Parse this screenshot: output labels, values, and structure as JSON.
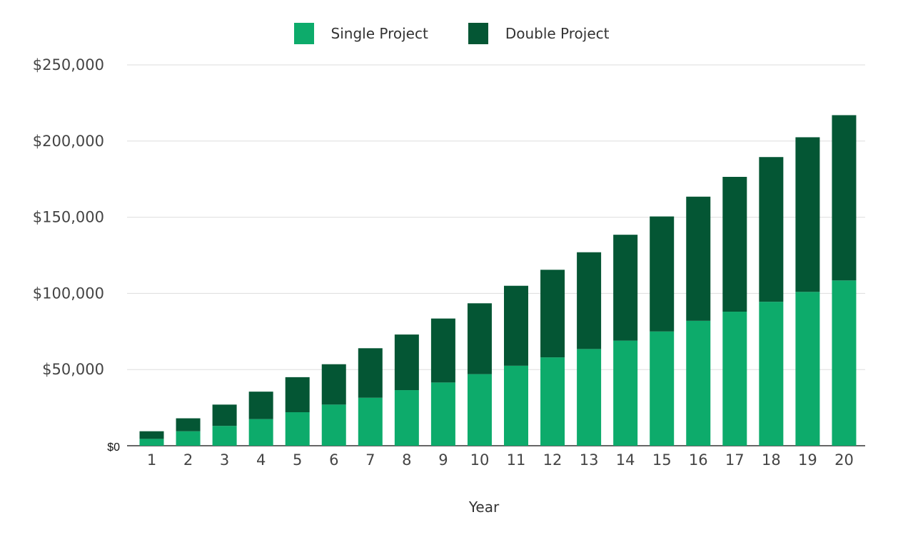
{
  "colors": {
    "single": "#0dab6b",
    "double": "#045634",
    "grid": "#dddddd",
    "axis": "#333333"
  },
  "chart_data": {
    "type": "bar",
    "stacked": true,
    "xlabel": "Year",
    "ylabel": "",
    "ylim": [
      0,
      250000
    ],
    "yticks": [
      0,
      50000,
      100000,
      150000,
      200000,
      250000
    ],
    "ytick_labels": [
      "$0",
      "$50,000",
      "$100,000",
      "$150,000",
      "$200,000",
      "$250,000"
    ],
    "grid": true,
    "legend_position": "top-center",
    "categories": [
      "1",
      "2",
      "3",
      "4",
      "5",
      "6",
      "7",
      "8",
      "9",
      "10",
      "11",
      "12",
      "13",
      "14",
      "15",
      "16",
      "17",
      "18",
      "19",
      "20"
    ],
    "series": [
      {
        "name": "Single Project",
        "color": "#0dab6b",
        "values": [
          4500,
          9500,
          13000,
          17500,
          22000,
          27000,
          31500,
          36500,
          41500,
          47000,
          52500,
          58000,
          63500,
          69000,
          75000,
          82000,
          88000,
          94500,
          101000,
          108500
        ]
      },
      {
        "name": "Double Project",
        "color": "#045634",
        "values": [
          5000,
          8500,
          14000,
          18000,
          23000,
          26500,
          32500,
          36500,
          42000,
          46500,
          52500,
          57500,
          63500,
          69500,
          75500,
          81500,
          88500,
          95000,
          101500,
          108500
        ]
      }
    ]
  }
}
